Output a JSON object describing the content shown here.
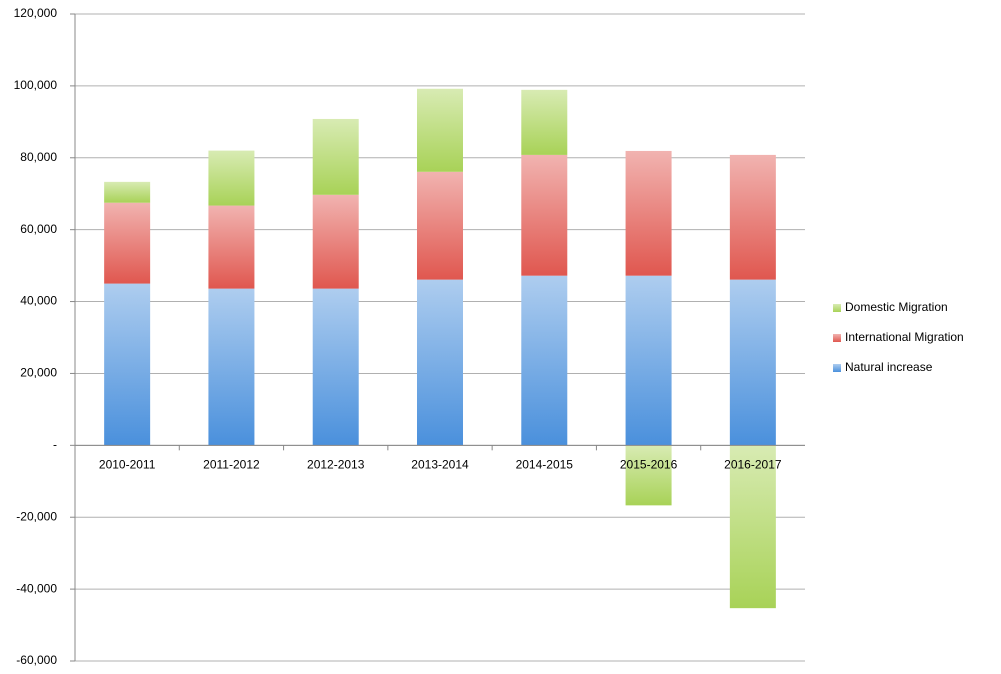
{
  "chart_data": {
    "type": "stacked_bar",
    "categories": [
      "2010-2011",
      "2011-2012",
      "2012-2013",
      "2013-2014",
      "2014-2015",
      "2015-2016",
      "2016-2017"
    ],
    "series": [
      {
        "name": "Natural increase",
        "color": "#4a90dc",
        "values": [
          45000,
          43600,
          43600,
          46100,
          47200,
          47200,
          46100
        ]
      },
      {
        "name": "International Migration",
        "color": "#e0574f",
        "values": [
          22500,
          23100,
          26100,
          30000,
          33600,
          34700,
          34700
        ]
      },
      {
        "name": "Domestic Migration",
        "color": "#a8d257",
        "values": [
          5800,
          15300,
          21100,
          23100,
          18100,
          -16700,
          -45300
        ]
      }
    ],
    "ylim": [
      -60000,
      120000
    ],
    "yticks": [
      {
        "value": -60000,
        "label": "-60,000"
      },
      {
        "value": -40000,
        "label": "-40,000"
      },
      {
        "value": -20000,
        "label": "-20,000"
      },
      {
        "value": 0,
        "label": "-"
      },
      {
        "value": 20000,
        "label": "20,000"
      },
      {
        "value": 40000,
        "label": "40,000"
      },
      {
        "value": 60000,
        "label": "60,000"
      },
      {
        "value": 80000,
        "label": "80,000"
      },
      {
        "value": 100000,
        "label": "100,000"
      },
      {
        "value": 120000,
        "label": "120,000"
      }
    ],
    "grid": true,
    "legend": "right"
  }
}
